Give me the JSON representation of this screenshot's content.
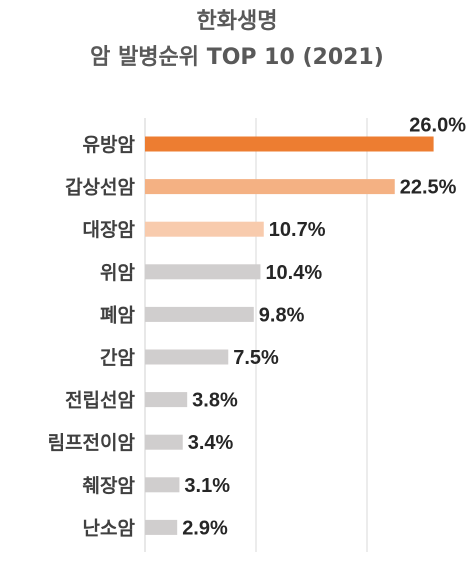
{
  "chart_data": {
    "type": "bar",
    "orientation": "horizontal",
    "title_lines": [
      "한화생명",
      "암 발병순위 TOP 10 (2021)"
    ],
    "categories": [
      "유방암",
      "갑상선암",
      "대장암",
      "위암",
      "폐암",
      "간암",
      "전립선암",
      "림프전이암",
      "췌장암",
      "난소암"
    ],
    "values": [
      26.0,
      22.5,
      10.7,
      10.4,
      9.8,
      7.5,
      3.8,
      3.4,
      3.1,
      2.9
    ],
    "value_labels": [
      "26.0%",
      "22.5%",
      "10.7%",
      "10.4%",
      "9.8%",
      "7.5%",
      "3.8%",
      "3.4%",
      "3.1%",
      "2.9%"
    ],
    "colors": [
      "#ED7D31",
      "#F4B183",
      "#F8CBAD",
      "#D0CECE",
      "#D0CECE",
      "#D0CECE",
      "#D0CECE",
      "#D0CECE",
      "#D0CECE",
      "#D0CECE"
    ],
    "xlim": [
      0,
      30
    ],
    "grid": true,
    "legend": "none"
  }
}
